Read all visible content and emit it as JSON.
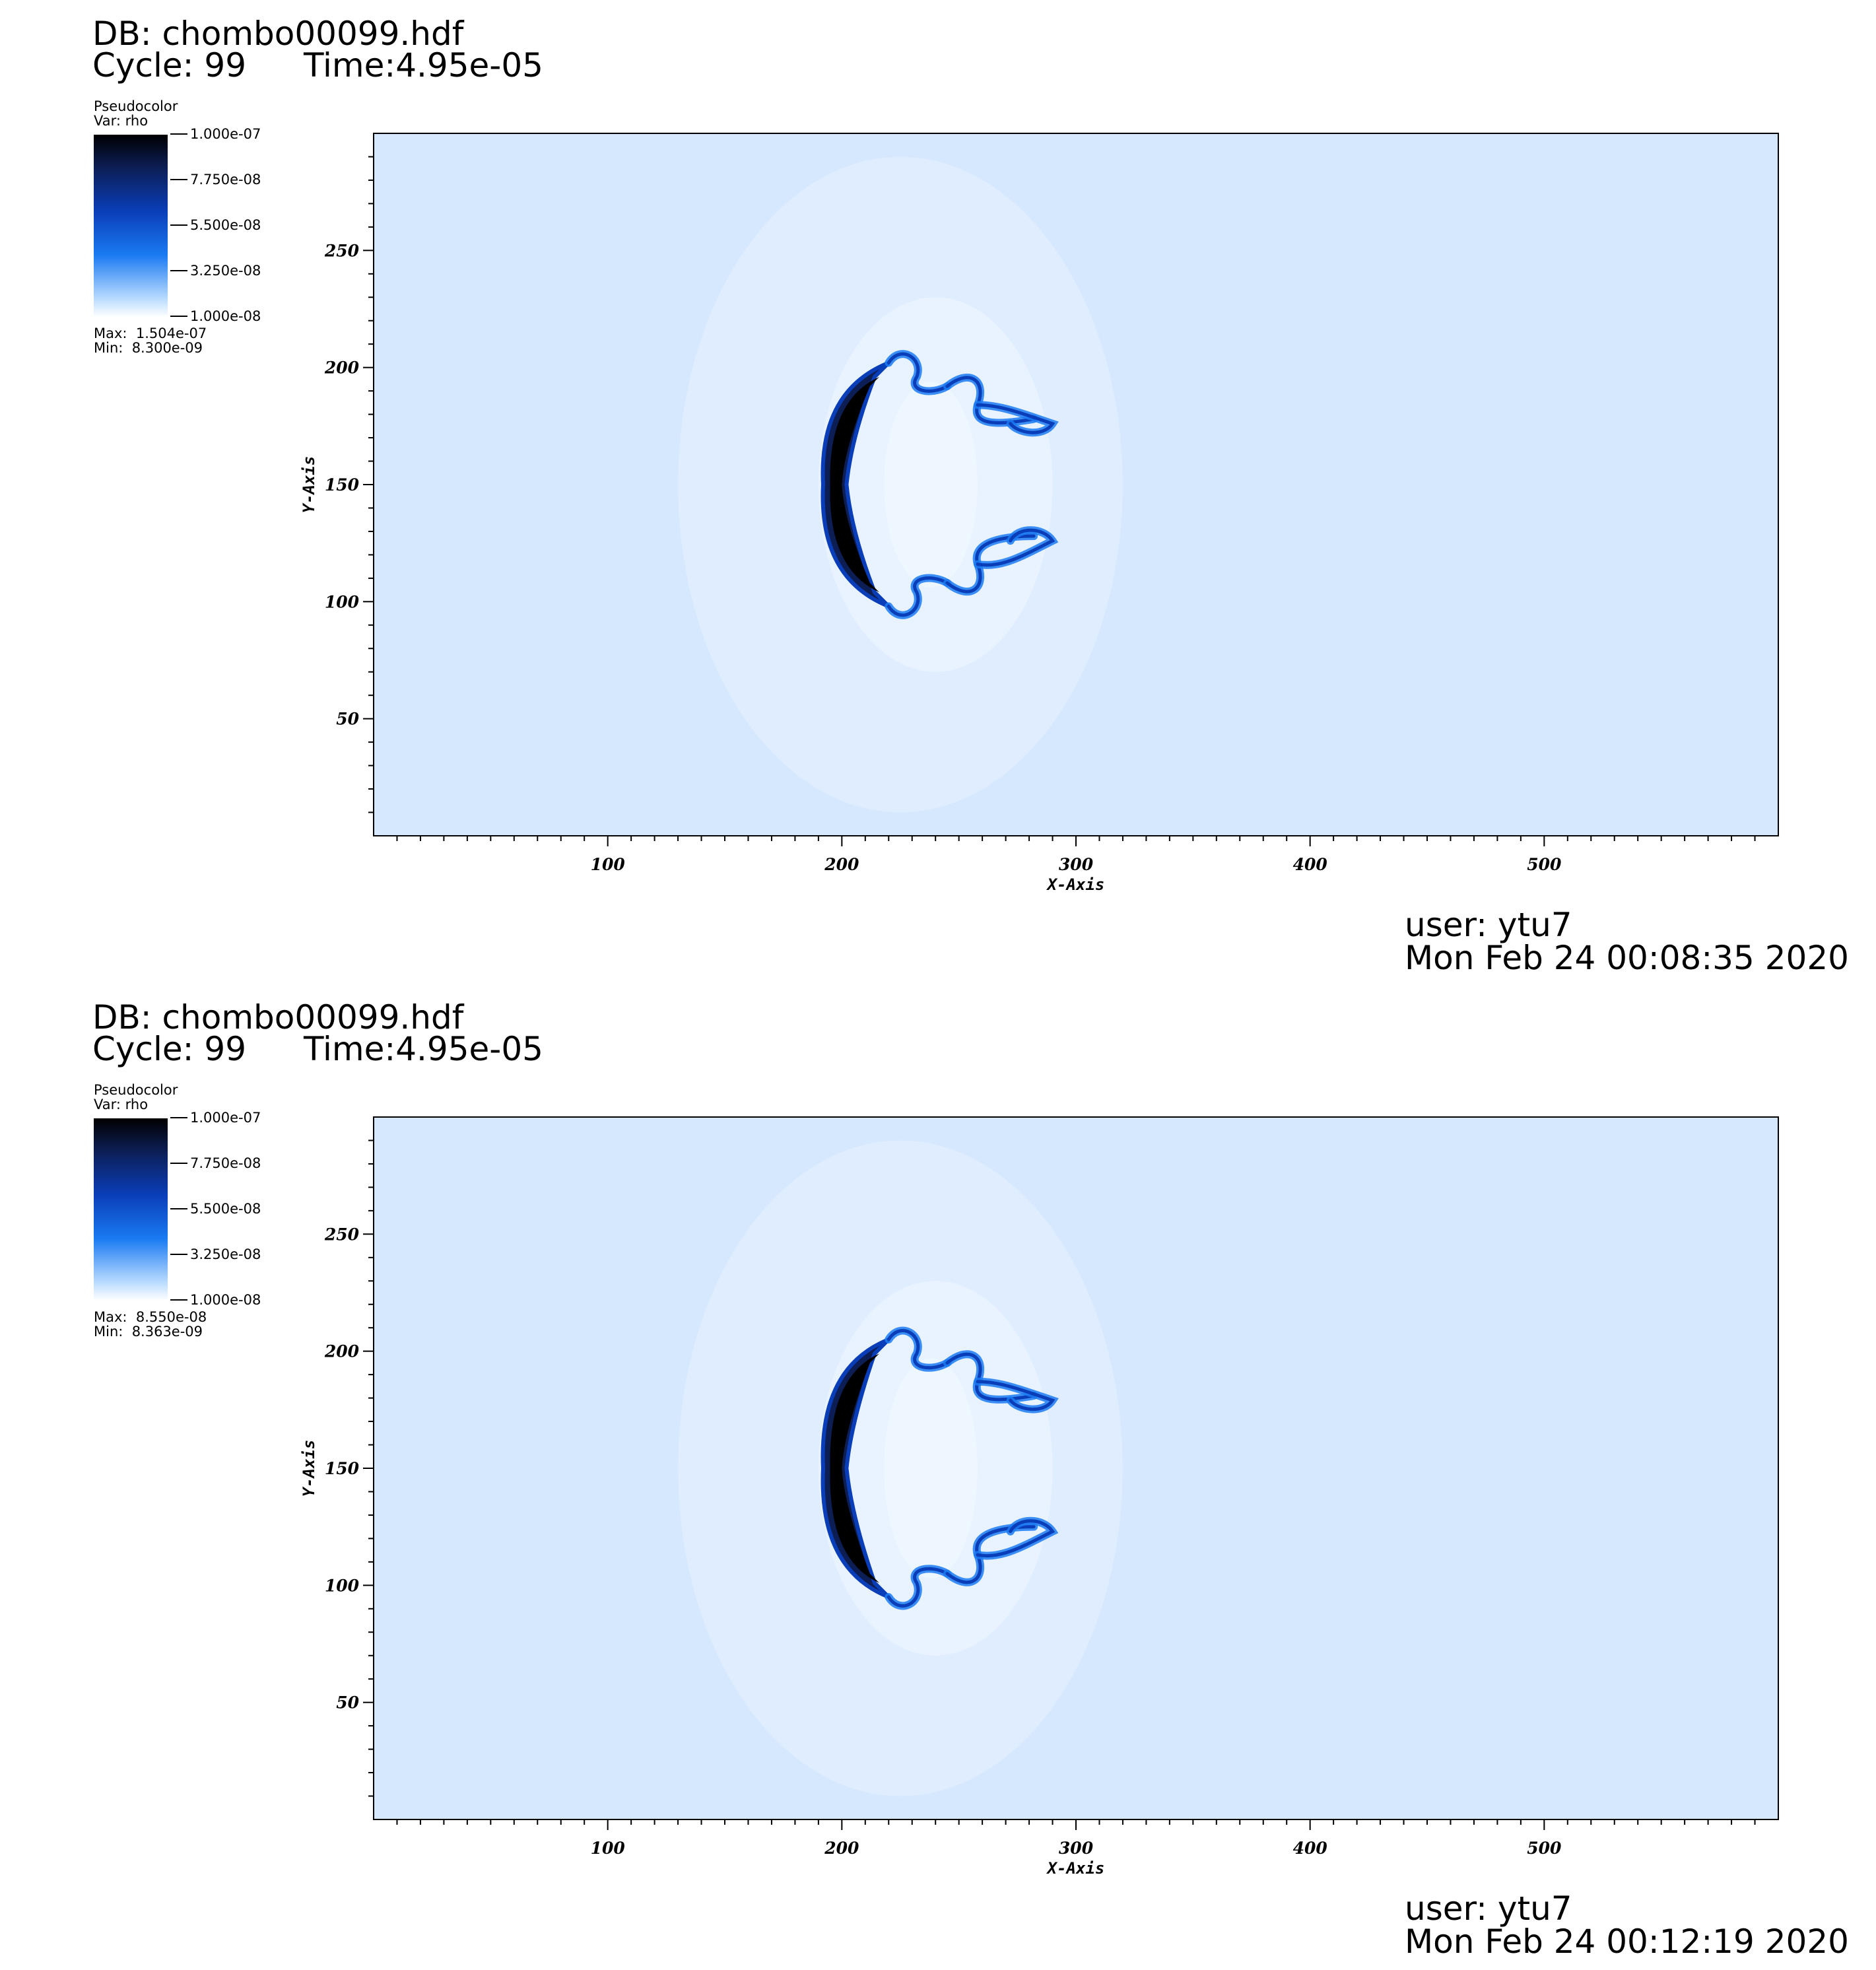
{
  "panels": [
    {
      "db_label": "DB: chombo00099.hdf",
      "cycle_label": "Cycle: 99",
      "time_label": "Time:4.95e-05",
      "legend": {
        "title": "Pseudocolor",
        "var": "Var: rho",
        "ticks": [
          "1.000e-07",
          "7.750e-08",
          "5.500e-08",
          "3.250e-08",
          "1.000e-08"
        ],
        "max_label": "Max:  1.504e-07",
        "min_label": "Min:  8.300e-09"
      },
      "user": "user: ytu7",
      "date": "Mon Feb 24 00:08:35 2020"
    },
    {
      "db_label": "DB: chombo00099.hdf",
      "cycle_label": "Cycle: 99",
      "time_label": "Time:4.95e-05",
      "legend": {
        "title": "Pseudocolor",
        "var": "Var: rho",
        "ticks": [
          "1.000e-07",
          "7.750e-08",
          "5.500e-08",
          "3.250e-08",
          "1.000e-08"
        ],
        "max_label": "Max:  8.550e-08",
        "min_label": "Min:  8.363e-09"
      },
      "user": "user: ytu7",
      "date": "Mon Feb 24 00:12:19 2020"
    }
  ],
  "chart_data": [
    {
      "type": "heatmap",
      "title": "",
      "variable": "rho",
      "xlabel": "X-Axis",
      "ylabel": "Y-Axis",
      "xlim": [
        0,
        600
      ],
      "ylim": [
        0,
        300
      ],
      "xticks": [
        100,
        200,
        300,
        400,
        500
      ],
      "yticks": [
        50,
        100,
        150,
        200,
        250
      ],
      "colorbar_range": [
        1e-08,
        1e-07
      ],
      "colormap": [
        "#ffffff",
        "#1a7af2",
        "#0a3eb8",
        "#0d1e55",
        "#000000"
      ],
      "background_color": "#d6e8fe",
      "data_max": 1.504e-07,
      "data_min": 8.3e-09,
      "feature": {
        "front_x": [
          192,
          220
        ],
        "y_range": [
          98,
          202
        ],
        "tail_x_max": 290
      }
    },
    {
      "type": "heatmap",
      "title": "",
      "variable": "rho",
      "xlabel": "X-Axis",
      "ylabel": "Y-Axis",
      "xlim": [
        0,
        600
      ],
      "ylim": [
        0,
        300
      ],
      "xticks": [
        100,
        200,
        300,
        400,
        500
      ],
      "yticks": [
        50,
        100,
        150,
        200,
        250
      ],
      "colorbar_range": [
        1e-08,
        1e-07
      ],
      "colormap": [
        "#ffffff",
        "#1a7af2",
        "#0a3eb8",
        "#0d1e55",
        "#000000"
      ],
      "background_color": "#d6e8fe",
      "data_max": 8.55e-08,
      "data_min": 8.363e-09,
      "feature": {
        "front_x": [
          192,
          220
        ],
        "y_range": [
          95,
          205
        ],
        "tail_x_max": 290
      }
    }
  ]
}
